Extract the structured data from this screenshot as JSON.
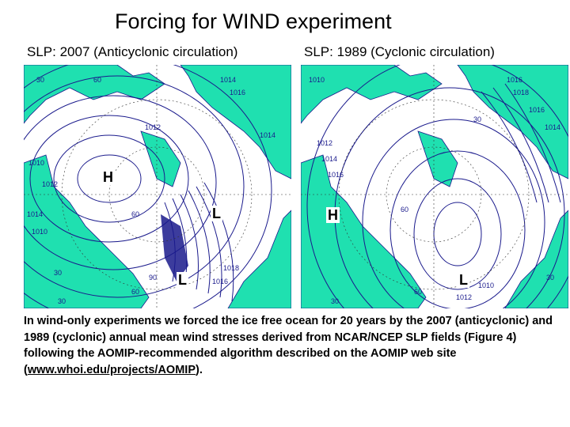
{
  "title": "Forcing for WIND experiment",
  "panels": {
    "left": {
      "caption": "SLP: 2007 (Anticyclonic circulation)",
      "labels": {
        "high": "H",
        "low1": "L",
        "low2": "L"
      },
      "contours": [
        "1014",
        "1016",
        "1012",
        "1014",
        "1010",
        "1014",
        "1012",
        "1016",
        "1018",
        "1010",
        "30",
        "60",
        "30",
        "60",
        "90",
        "60",
        "30"
      ]
    },
    "right": {
      "caption": "SLP: 1989 (Cyclonic circulation)",
      "labels": {
        "high": "H",
        "low": "L"
      },
      "contours": [
        "1016",
        "1018",
        "1016",
        "1014",
        "1010",
        "1016",
        "1012",
        "1014",
        "1012",
        "1010",
        "30",
        "60",
        "30",
        "60",
        "30"
      ]
    }
  },
  "colors": {
    "land": "#1fe0b0",
    "ocean": "#ffffff",
    "contour": "#1a1a8c"
  },
  "description": {
    "text_before": "In wind-only experiments we forced the ice free ocean for 20 years by the 2007 (anticyclonic) and 1989 (cyclonic) annual mean wind stresses derived from NCAR/NCEP SLP fields (Figure 4) following the AOMIP-recommended algorithm described on the AOMIP web site (",
    "link_text": "www.whoi.edu/projects/AOMIP",
    "text_after": ")."
  }
}
